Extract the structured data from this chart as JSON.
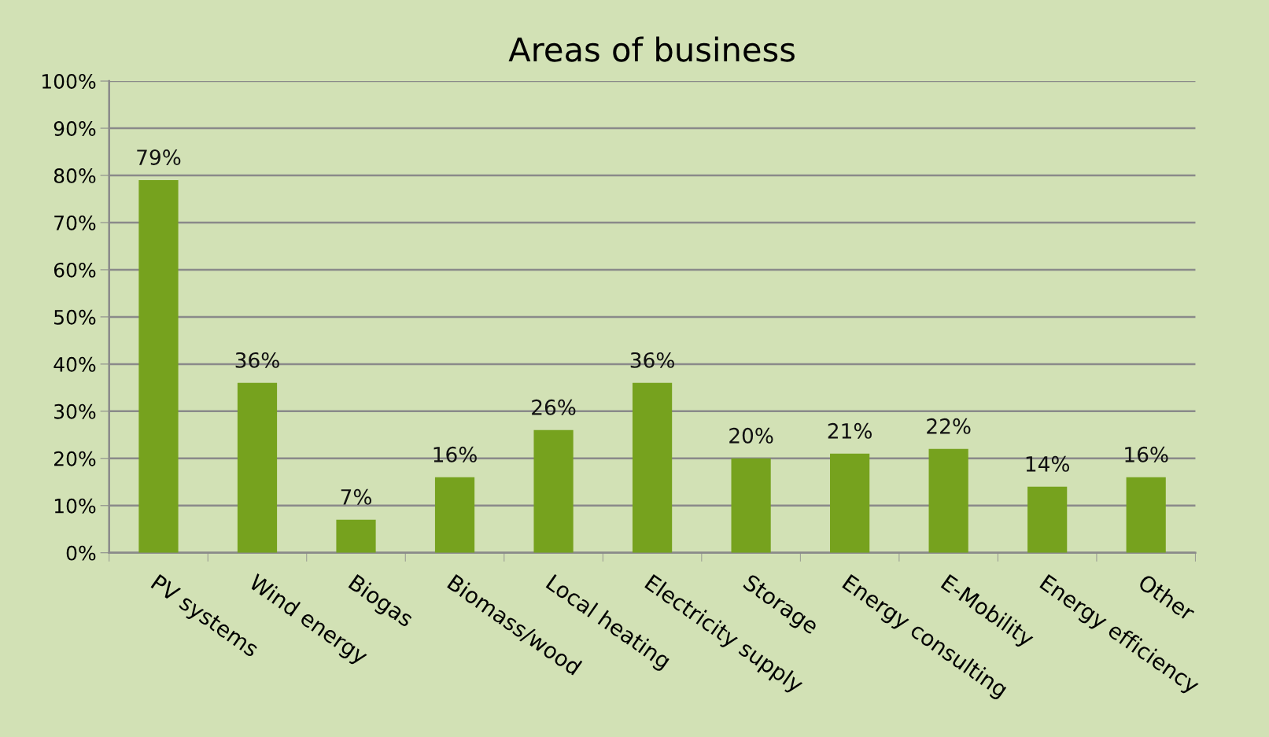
{
  "chart_data": {
    "type": "bar",
    "title": "Areas of business",
    "categories": [
      "PV systems",
      "Wind energy",
      "Biogas",
      "Biomass/wood",
      "Local heating",
      "Electricity supply",
      "Storage",
      "Energy consulting",
      "E-Mobility",
      "Energy efficiency",
      "Other"
    ],
    "values": [
      79,
      36,
      7,
      16,
      26,
      36,
      20,
      21,
      22,
      14,
      16
    ],
    "value_labels": [
      "79%",
      "36%",
      "7%",
      "16%",
      "26%",
      "36%",
      "20%",
      "21%",
      "22%",
      "14%",
      "16%"
    ],
    "color": "#76a21e",
    "ylim": [
      0,
      100
    ],
    "yticks": [
      {
        "value": 0,
        "label": "0%"
      },
      {
        "value": 10,
        "label": "10%"
      },
      {
        "value": 20,
        "label": "20%"
      },
      {
        "value": 30,
        "label": "30%"
      },
      {
        "value": 40,
        "label": "40%"
      },
      {
        "value": 50,
        "label": "50%"
      },
      {
        "value": 60,
        "label": "60%"
      },
      {
        "value": 70,
        "label": "70%"
      },
      {
        "value": 80,
        "label": "80%"
      },
      {
        "value": 90,
        "label": "90%"
      },
      {
        "value": 100,
        "label": "100%"
      }
    ],
    "grid": "y",
    "legend": false
  }
}
